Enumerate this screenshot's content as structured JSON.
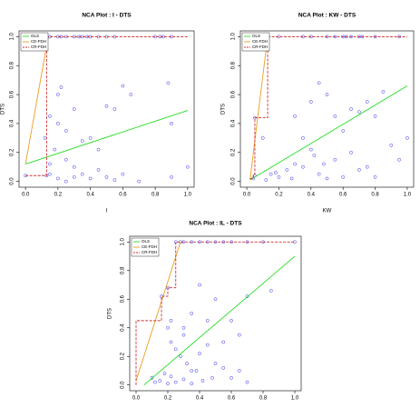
{
  "chart_data": [
    {
      "type": "scatter",
      "title": "NCA Plot : I - DTS",
      "xlabel": "I",
      "ylabel": "DTS",
      "xlim": [
        -0.04,
        1.04
      ],
      "ylim": [
        -0.04,
        1.04
      ],
      "xticks": [
        {
          "value": 0,
          "label": "0.0"
        },
        {
          "value": 0.2,
          "label": "0.2"
        },
        {
          "value": 0.4,
          "label": "0.4"
        },
        {
          "value": 0.6,
          "label": "0.6"
        },
        {
          "value": 0.8,
          "label": "0.8"
        },
        {
          "value": 1,
          "label": "1.0"
        }
      ],
      "yticks": [
        {
          "value": 0,
          "label": "0.0"
        },
        {
          "value": 0.2,
          "label": "0.2"
        },
        {
          "value": 0.4,
          "label": "0.4"
        },
        {
          "value": 0.6,
          "label": "0.6"
        },
        {
          "value": 0.8,
          "label": "0.8"
        },
        {
          "value": 1,
          "label": "1.0"
        }
      ],
      "series": [
        {
          "name": "OLS",
          "color": "#22dd22",
          "style": "solid",
          "x": [
            0,
            1
          ],
          "values": [
            0.12,
            0.49
          ]
        },
        {
          "name": "CE-FDH",
          "color": "#e8a020",
          "style": "solid",
          "x": [
            0,
            0.14
          ],
          "values": [
            0.12,
            1
          ]
        },
        {
          "name": "CR-FDH",
          "color": "#d03030",
          "style": "dashed",
          "x": [
            0,
            0.13,
            0.13,
            1
          ],
          "values": [
            0.04,
            0.04,
            1,
            1
          ]
        }
      ],
      "points": {
        "color": "#3333ee",
        "x": [
          0.15,
          0.2,
          0.22,
          0.25,
          0.3,
          0.33,
          0.35,
          0.38,
          0.4,
          0.45,
          0.5,
          0.55,
          0.8,
          0.83,
          0.85,
          0.9,
          0.15,
          0.2,
          0.22,
          0.2,
          0.25,
          0.3,
          0.35,
          0.4,
          0.45,
          0.5,
          0.55,
          0.6,
          0.65,
          0.88,
          0.9,
          1.0,
          0.12,
          0.18,
          0.15,
          0.25,
          0.3,
          0.35,
          0.4,
          0.45,
          0.5,
          0.55,
          0.6,
          0.2,
          0.25,
          0.3,
          0.15,
          0.7,
          0.9,
          0,
          0.13
        ],
        "values": [
          1,
          1,
          1,
          1,
          1,
          1,
          1,
          1,
          1,
          1,
          1,
          1,
          1,
          1,
          1,
          1,
          0.45,
          0.6,
          0.65,
          0.4,
          0.35,
          0.5,
          0.28,
          0.3,
          0.22,
          0.52,
          0.5,
          0.66,
          0.6,
          0.68,
          0.4,
          0.1,
          0.3,
          0.22,
          0.12,
          0.15,
          0.1,
          0.05,
          0.02,
          0.08,
          0.03,
          0.01,
          0.05,
          0.02,
          0,
          0.03,
          0.05,
          0,
          0.03,
          0.04,
          0.04
        ]
      },
      "legend": "upper left"
    },
    {
      "type": "scatter",
      "title": "NCA Plot : KW - DTS",
      "xlabel": "KW",
      "ylabel": "DTS",
      "xlim": [
        -0.04,
        1.04
      ],
      "ylim": [
        -0.04,
        1.04
      ],
      "xticks": [
        {
          "value": 0,
          "label": "0.0"
        },
        {
          "value": 0.2,
          "label": "0.2"
        },
        {
          "value": 0.4,
          "label": "0.4"
        },
        {
          "value": 0.6,
          "label": "0.6"
        },
        {
          "value": 0.8,
          "label": "0.8"
        },
        {
          "value": 1,
          "label": "1.0"
        }
      ],
      "yticks": [
        {
          "value": 0,
          "label": "0.0"
        },
        {
          "value": 0.2,
          "label": "0.2"
        },
        {
          "value": 0.4,
          "label": "0.4"
        },
        {
          "value": 0.6,
          "label": "0.6"
        },
        {
          "value": 0.8,
          "label": "0.8"
        },
        {
          "value": 1,
          "label": "1.0"
        }
      ],
      "series": [
        {
          "name": "OLS",
          "color": "#22dd22",
          "style": "solid",
          "x": [
            0.02,
            1
          ],
          "values": [
            0.01,
            0.66
          ]
        },
        {
          "name": "CE-FDH",
          "color": "#e8a020",
          "style": "solid",
          "x": [
            0.02,
            0.13
          ],
          "values": [
            0.01,
            1
          ]
        },
        {
          "name": "CR-FDH",
          "color": "#d03030",
          "style": "dashed",
          "x": [
            0.02,
            0.04,
            0.04,
            0.05,
            0.05,
            0.13,
            0.13,
            1
          ],
          "values": [
            0.02,
            0.02,
            0.04,
            0.04,
            0.44,
            0.44,
            1,
            1
          ]
        }
      ],
      "points": {
        "color": "#3333ee",
        "x": [
          0.13,
          0.2,
          0.35,
          0.4,
          0.5,
          0.55,
          0.6,
          0.62,
          0.65,
          0.7,
          0.72,
          0.8,
          0.95,
          0.05,
          0.1,
          0.3,
          0.35,
          0.4,
          0.45,
          0.5,
          0.55,
          0.6,
          0.65,
          0.7,
          0.75,
          0.8,
          0.85,
          0.9,
          0.95,
          1.0,
          0.15,
          0.2,
          0.25,
          0.3,
          0.35,
          0.4,
          0.45,
          0.5,
          0.55,
          0.6,
          0.65,
          0.7,
          0.75,
          0.8,
          0.12,
          0.18,
          0.28,
          0.42,
          0.48,
          0.04,
          0.05
        ],
        "values": [
          1,
          1,
          1,
          1,
          1,
          1,
          1,
          1,
          1,
          1,
          1,
          1,
          1,
          0.44,
          0.3,
          0.45,
          0.3,
          0.55,
          0.68,
          0.6,
          0.45,
          0.35,
          0.5,
          0.48,
          0.55,
          0.45,
          0.62,
          0.25,
          0.15,
          0.3,
          0.05,
          0.03,
          0.08,
          0.12,
          0.1,
          0.22,
          0.05,
          0.02,
          0.15,
          0.03,
          0.2,
          0.08,
          0.1,
          0.03,
          0.01,
          0.06,
          0.02,
          0.18,
          0.12,
          0.02,
          0.04
        ]
      },
      "legend": "upper left"
    },
    {
      "type": "scatter",
      "title": "NCA Plot : IL - DTS",
      "ylabel": "DTS",
      "xlim": [
        -0.04,
        1.04
      ],
      "ylim": [
        -0.04,
        1.04
      ],
      "xticks": [
        {
          "value": 0,
          "label": "0.0"
        },
        {
          "value": 0.2,
          "label": "0.2"
        },
        {
          "value": 0.4,
          "label": "0.4"
        },
        {
          "value": 0.6,
          "label": "0.6"
        },
        {
          "value": 0.8,
          "label": "0.8"
        },
        {
          "value": 1,
          "label": "1.0"
        }
      ],
      "yticks": [
        {
          "value": 0,
          "label": "0.0"
        },
        {
          "value": 0.2,
          "label": "0.2"
        },
        {
          "value": 0.4,
          "label": "0.4"
        },
        {
          "value": 0.6,
          "label": "0.6"
        },
        {
          "value": 0.8,
          "label": "0.8"
        },
        {
          "value": 1,
          "label": "1.0"
        }
      ],
      "series": [
        {
          "name": "OLS",
          "color": "#22dd22",
          "style": "solid",
          "x": [
            0.05,
            1
          ],
          "values": [
            0,
            0.9
          ]
        },
        {
          "name": "CE-FDH",
          "color": "#e8a020",
          "style": "solid",
          "x": [
            0,
            0.28
          ],
          "values": [
            0.03,
            1
          ]
        },
        {
          "name": "CR-FDH",
          "color": "#d03030",
          "style": "dashed",
          "x": [
            0,
            0,
            0.16,
            0.16,
            0.2,
            0.2,
            0.25,
            0.25,
            1
          ],
          "values": [
            0,
            0.45,
            0.45,
            0.62,
            0.62,
            0.68,
            0.68,
            1,
            1
          ]
        }
      ],
      "points": {
        "color": "#3333ee",
        "x": [
          0.25,
          0.28,
          0.3,
          0.35,
          0.4,
          0.45,
          0.5,
          0.55,
          0.6,
          0.7,
          0.8,
          1.0,
          0.16,
          0.2,
          0.22,
          0.3,
          0.35,
          0.4,
          0.45,
          0.5,
          0.55,
          0.6,
          0.65,
          0.7,
          0.85,
          0.2,
          0.22,
          0.25,
          0.28,
          0.3,
          0.32,
          0.35,
          0.4,
          0.45,
          0.5,
          0.55,
          0.6,
          0.1,
          0.12,
          0.15,
          0.18,
          0.2,
          0.22,
          0.25,
          0.3,
          0.35,
          0.38,
          0.42,
          0.48,
          0.65,
          0.7
        ],
        "values": [
          1,
          1,
          1,
          1,
          1,
          1,
          1,
          1,
          1,
          1,
          1,
          1,
          0.62,
          0.68,
          0.45,
          0.4,
          0.5,
          0.7,
          0.45,
          0.6,
          0.3,
          0.45,
          0.35,
          0.62,
          0.66,
          0.4,
          0.3,
          0.25,
          0.2,
          0.35,
          0.15,
          0.1,
          0.22,
          0.28,
          0.15,
          0.12,
          0.05,
          0.05,
          0.02,
          0.03,
          0.08,
          0.01,
          0.06,
          0.02,
          0.04,
          0.01,
          0.1,
          0.03,
          0.05,
          0.1,
          0.02
        ]
      },
      "legend": "upper left"
    }
  ]
}
